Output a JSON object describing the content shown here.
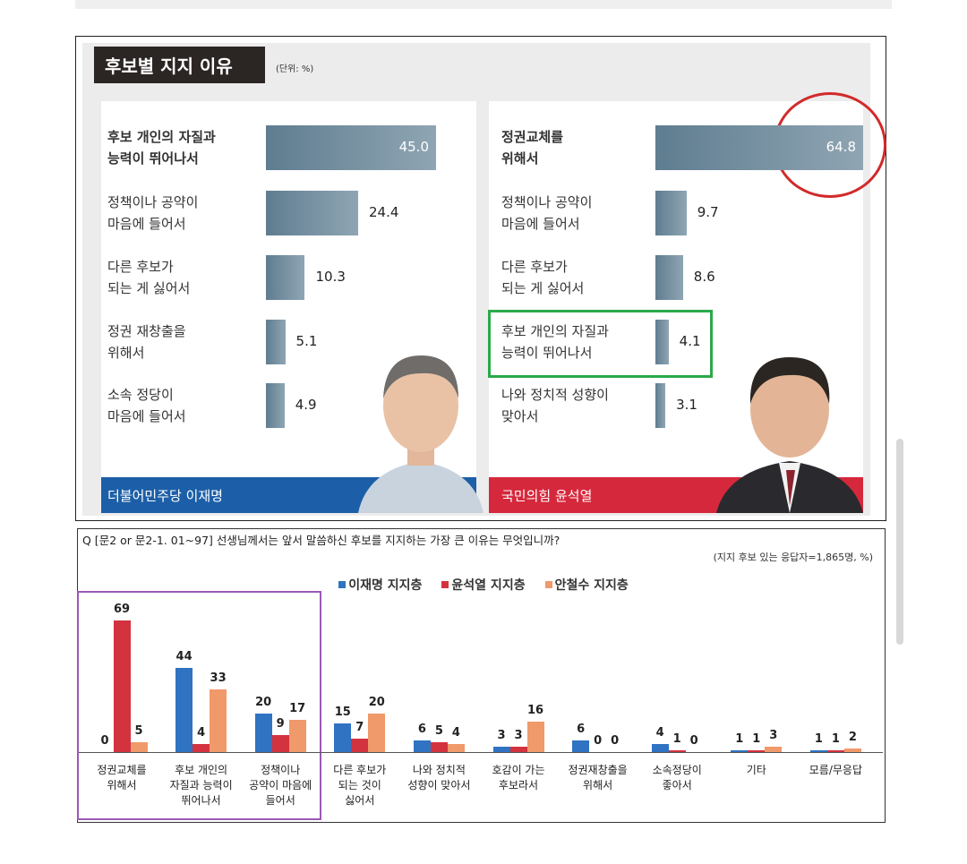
{
  "chart_data": [
    {
      "type": "hbar",
      "title": "후보별 지지 이유",
      "subtitle": "(단위: %)",
      "label": "더불어민주당 이재명",
      "color": "#5f7d90",
      "categories": [
        "후보 개인의 자질과\n능력이 뛰어나서",
        "정책이나 공약이\n마음에 들어서",
        "다른 후보가\n되는 게 싫어서",
        "정권 재창출을\n위해서",
        "소속 정당이\n마음에 들어서"
      ],
      "values": [
        45.0,
        24.4,
        10.3,
        5.1,
        4.9
      ],
      "value_labels": [
        "45.0",
        "24.4",
        "10.3",
        "5.1",
        "4.9"
      ]
    },
    {
      "type": "hbar",
      "label": "국민의힘 윤석열",
      "color": "#5f7d90",
      "categories": [
        "정권교체를\n위해서",
        "정책이나 공약이\n마음에 들어서",
        "다른 후보가\n되는 게 싫어서",
        "후보 개인의 자질과\n능력이 뛰어나서",
        "나와 정치적 성향이\n맞아서"
      ],
      "values": [
        64.8,
        9.7,
        8.6,
        4.1,
        3.1
      ],
      "value_labels": [
        "64.8",
        "9.7",
        "8.6",
        "4.1",
        "3.1"
      ]
    },
    {
      "type": "bar",
      "title": "Q [문2 or 문2-1. 01~97] 선생님께서는 앞서 말씀하신 후보를 지지하는 가장 큰 이유는 무엇입니까?",
      "subtitle": "(지지 후보 있는 응답자=1,865명, %)",
      "legend": "top",
      "categories": [
        "정권교체를\n위해서",
        "후보 개인의\n자질과 능력이\n뛰어나서",
        "정책이나\n공약이 마음에\n들어서",
        "다른 후보가\n되는 것이\n싫어서",
        "나와 정치적\n성향이 맞아서",
        "호감이 가는\n후보라서",
        "정권재창출을\n위해서",
        "소속정당이\n좋아서",
        "기타",
        "모름/무응답"
      ],
      "series": [
        {
          "name": "이재명 지지층",
          "color": "#2f73c2",
          "values": [
            0,
            44,
            20,
            15,
            6,
            3,
            6,
            4,
            1,
            1
          ]
        },
        {
          "name": "윤석열 지지층",
          "color": "#d3323f",
          "values": [
            69,
            4,
            9,
            7,
            5,
            3,
            0,
            1,
            1,
            1
          ]
        },
        {
          "name": "안철수 지지층",
          "color": "#f0996a",
          "values": [
            5,
            33,
            17,
            20,
            4,
            16,
            0,
            0,
            3,
            2
          ]
        }
      ]
    }
  ]
}
